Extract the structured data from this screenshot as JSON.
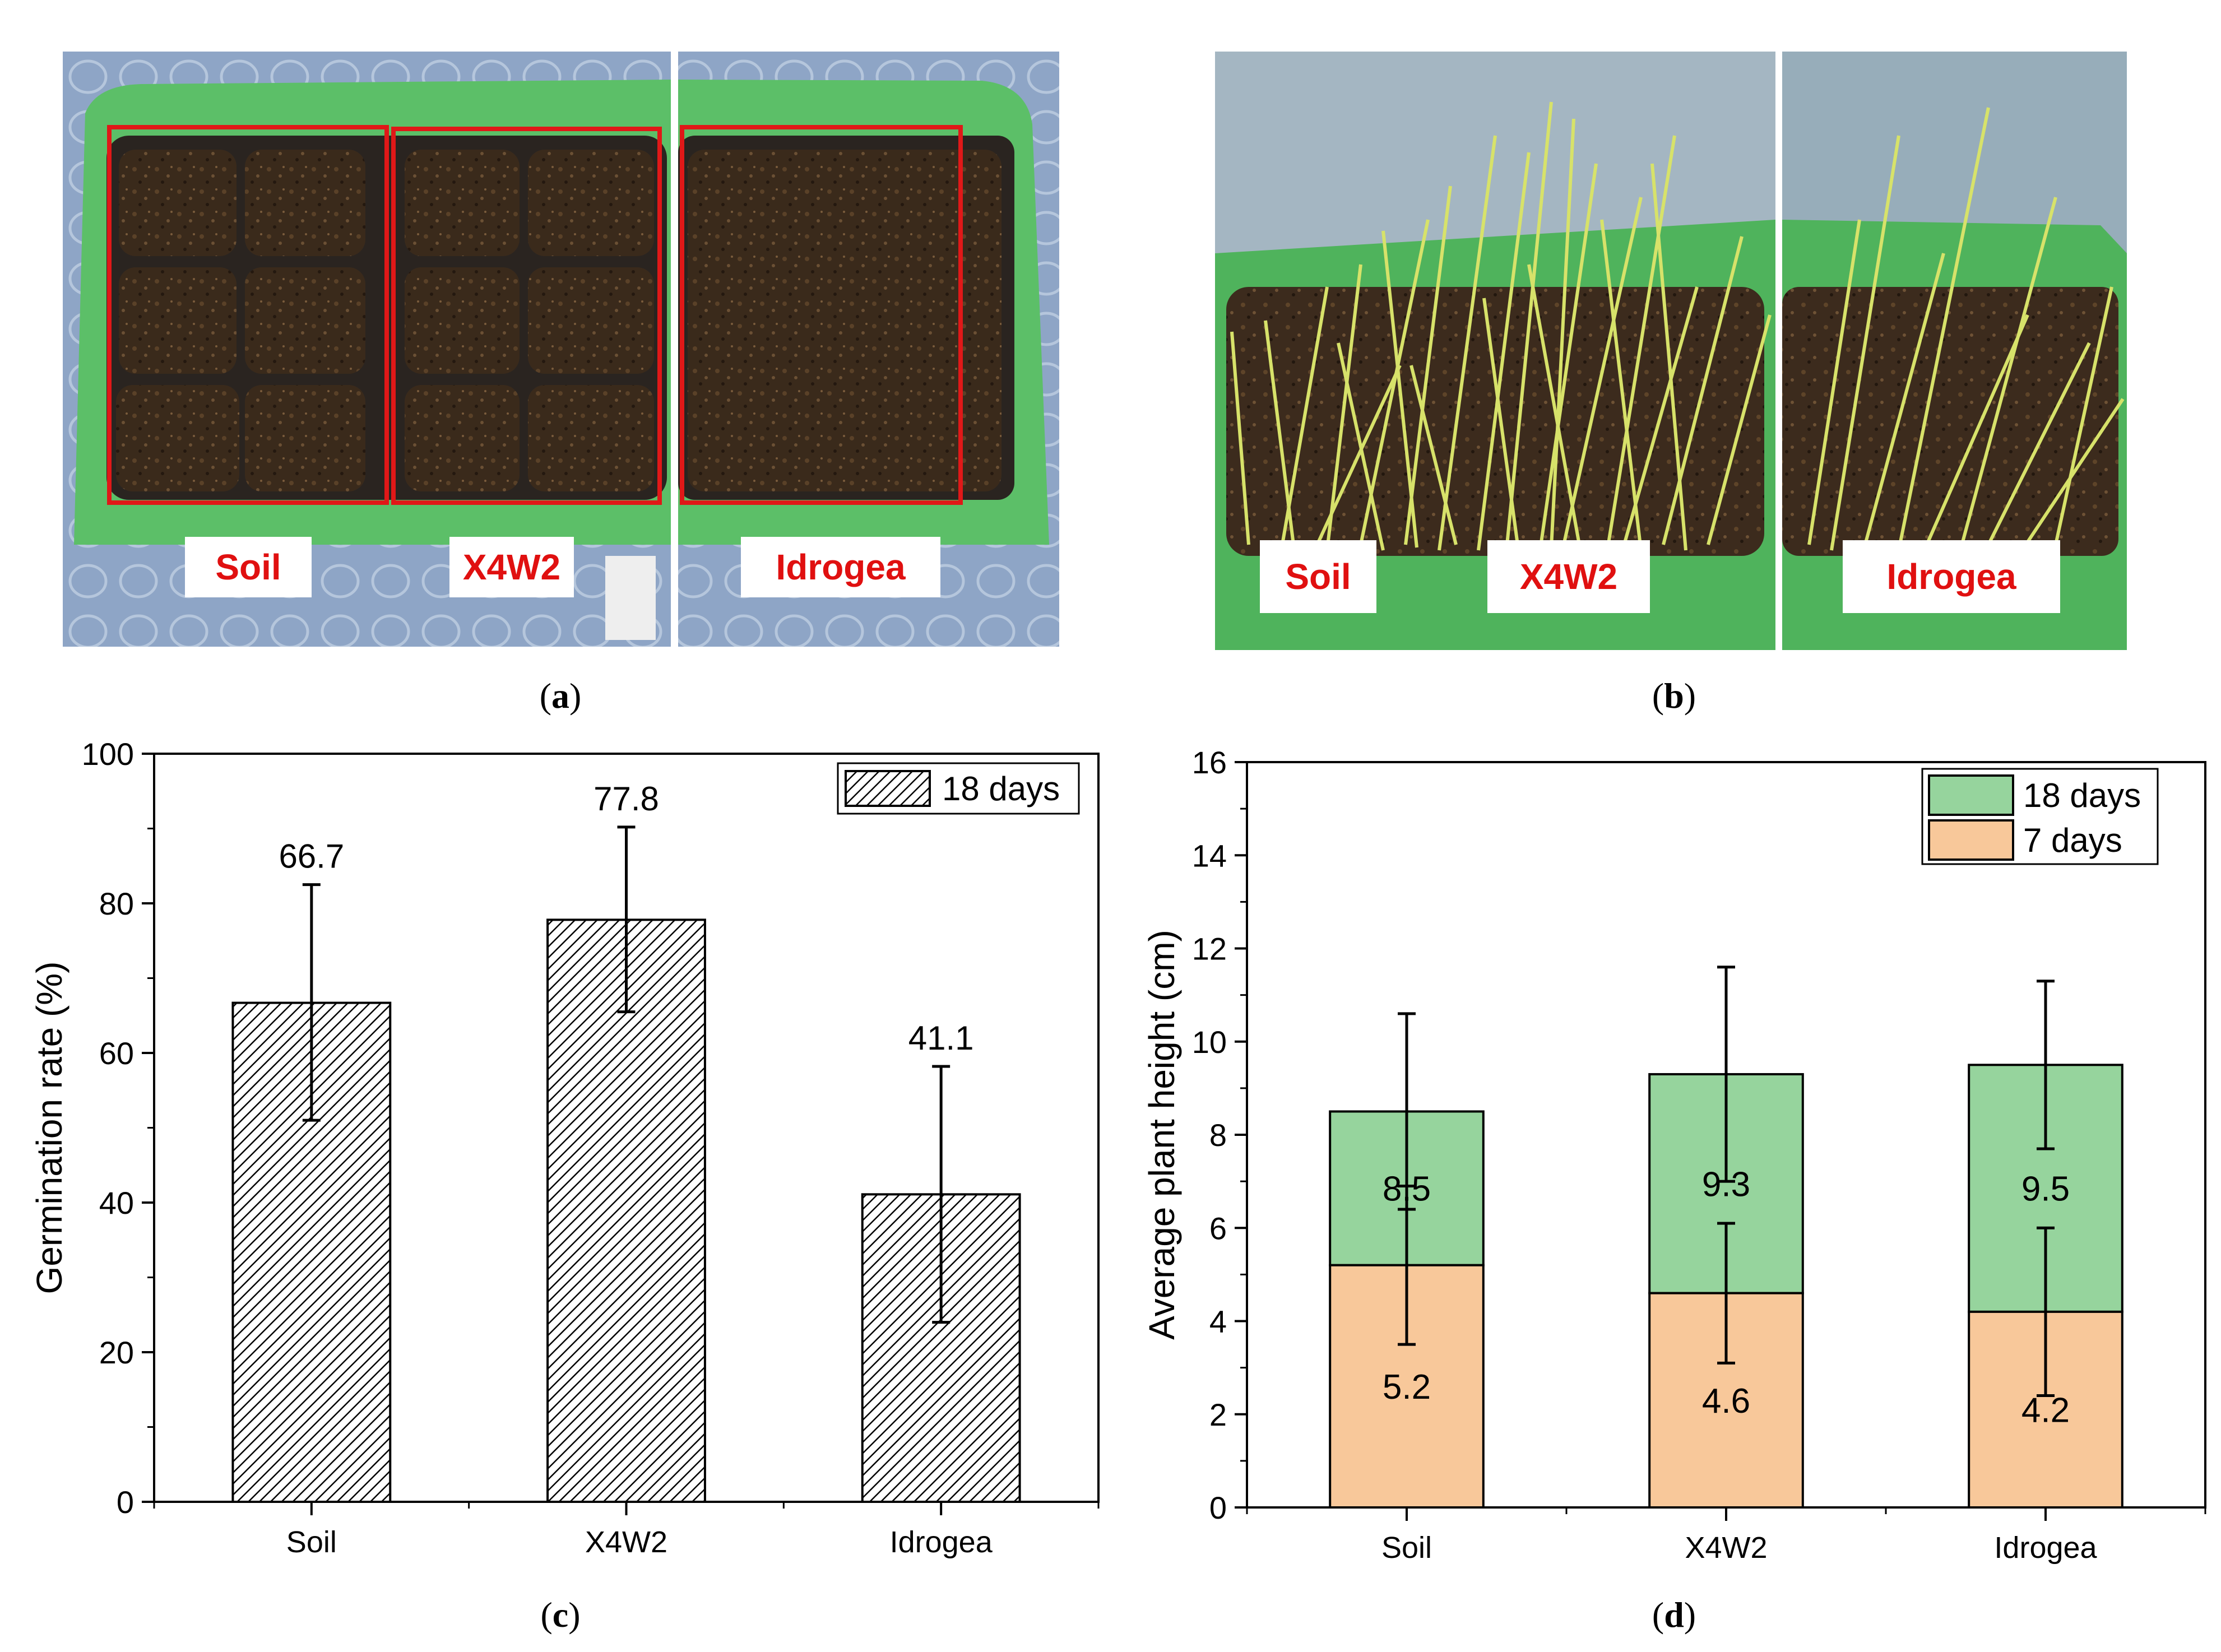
{
  "panels": {
    "a": {
      "caption_letter": "a",
      "labels": [
        "Soil",
        "X4W2",
        "Idrogea"
      ],
      "colors": {
        "tray": "#5fbf6a",
        "soil": "#3b2a1c",
        "mat": "#8fa7c8",
        "box": "#e01818",
        "label_text": "#e01010"
      }
    },
    "b": {
      "caption_letter": "b",
      "labels": [
        "Soil",
        "X4W2",
        "Idrogea"
      ],
      "colors": {
        "tray": "#4fb45c",
        "soil": "#3d2b1d",
        "sprout": "#d7e26a",
        "wall": "#9bb1bf",
        "label_text": "#e01010"
      }
    },
    "c": {
      "caption_letter": "c"
    },
    "d": {
      "caption_letter": "d"
    }
  },
  "chart_data": [
    {
      "id": "c",
      "type": "bar",
      "categories": [
        "Soil",
        "X4W2",
        "Idrogea"
      ],
      "series": [
        {
          "name": "18 days",
          "values": [
            66.7,
            77.8,
            41.1
          ],
          "error": [
            [
              51,
              82.5
            ],
            [
              65.5,
              90.2
            ],
            [
              24,
              58.2
            ]
          ],
          "fill": "hatched"
        }
      ],
      "data_labels": [
        "66.7",
        "77.8",
        "41.1"
      ],
      "ylabel": "Germination rate (%)",
      "xlabel": "",
      "ylim": [
        0,
        100
      ],
      "yticks": [
        0,
        20,
        40,
        60,
        80,
        100
      ],
      "legend": [
        "18 days"
      ],
      "legend_position": "top-right"
    },
    {
      "id": "d",
      "type": "bar",
      "stacked": true,
      "categories": [
        "Soil",
        "X4W2",
        "Idrogea"
      ],
      "series": [
        {
          "name": "7 days",
          "values": [
            5.2,
            4.6,
            4.2
          ],
          "error": [
            [
              3.5,
              6.9
            ],
            [
              3.1,
              6.1
            ],
            [
              2.4,
              6.0
            ]
          ],
          "color": "#f8c89a"
        },
        {
          "name": "18 days",
          "values": [
            8.5,
            9.3,
            9.5
          ],
          "error": [
            [
              6.4,
              10.6
            ],
            [
              7.0,
              11.6
            ],
            [
              7.7,
              11.3
            ]
          ],
          "color": "#96d49d"
        }
      ],
      "data_labels_7": [
        "5.2",
        "4.6",
        "4.2"
      ],
      "data_labels_18": [
        "8.5",
        "9.3",
        "9.5"
      ],
      "ylabel": "Average plant height (cm)",
      "xlabel": "",
      "ylim": [
        0,
        16
      ],
      "yticks": [
        0,
        2,
        4,
        6,
        8,
        10,
        12,
        14,
        16
      ],
      "legend": [
        "18 days",
        "7 days"
      ],
      "legend_position": "top-right"
    }
  ]
}
